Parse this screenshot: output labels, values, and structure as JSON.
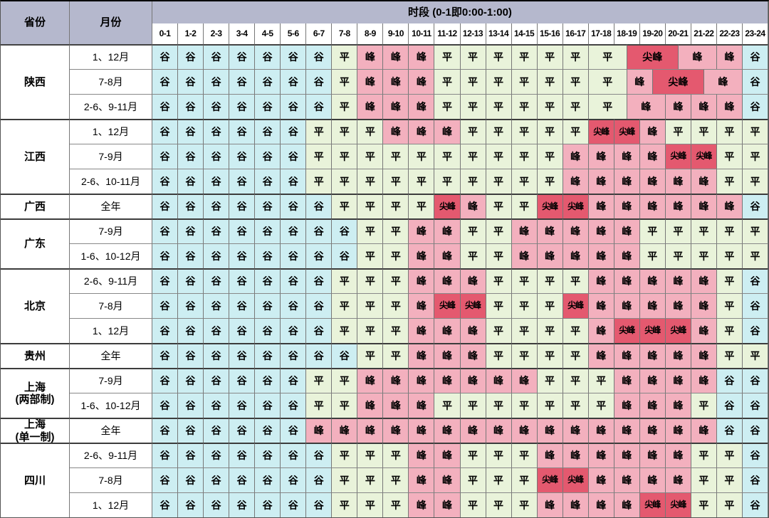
{
  "colors": {
    "valley": "#CDEEF2",
    "flat": "#E9F3DA",
    "peak": "#F3B0BE",
    "sharp": "#E4596F",
    "header_bg": "#B5B8CD",
    "hour_bg": "#FFFFFF",
    "grid_line": "#777777",
    "group_line": "#3C3C3C"
  },
  "header": {
    "province_label": "省份",
    "month_label": "月份",
    "period_title": "时段 (0-1即0:00-1:00)",
    "hours": [
      "0-1",
      "1-2",
      "2-3",
      "3-4",
      "4-5",
      "5-6",
      "6-7",
      "7-8",
      "8-9",
      "9-10",
      "10-11",
      "11-12",
      "12-13",
      "13-14",
      "14-15",
      "15-16",
      "16-17",
      "17-18",
      "18-19",
      "19-20",
      "20-21",
      "21-22",
      "22-23",
      "23-24"
    ]
  },
  "legend": {
    "valley": "谷",
    "flat": "平",
    "peak": "峰",
    "sharp": "尖峰"
  },
  "provinces": [
    {
      "name": "陕西",
      "rows": [
        {
          "months": "1、12月",
          "segments": [
            [
              "谷",
              0,
              7
            ],
            [
              "平",
              7,
              8
            ],
            [
              "峰",
              8,
              11
            ],
            [
              "平",
              11,
              17
            ],
            [
              "平",
              17,
              18.5,
              1
            ],
            [
              "尖峰",
              18.5,
              20.5,
              1
            ],
            [
              "峰",
              20.5,
              22,
              1
            ],
            [
              "峰",
              22,
              23
            ],
            [
              "谷",
              23,
              24
            ]
          ]
        },
        {
          "months": "7-8月",
          "segments": [
            [
              "谷",
              0,
              7
            ],
            [
              "平",
              7,
              8
            ],
            [
              "峰",
              8,
              11
            ],
            [
              "平",
              11,
              17
            ],
            [
              "平",
              17,
              18.5,
              1
            ],
            [
              "峰",
              18.5,
              19.5,
              1
            ],
            [
              "尖峰",
              19.5,
              21.5,
              1
            ],
            [
              "峰",
              21.5,
              23,
              1
            ],
            [
              "谷",
              23,
              24
            ]
          ]
        },
        {
          "months": "2-6、9-11月",
          "segments": [
            [
              "谷",
              0,
              7
            ],
            [
              "平",
              7,
              8
            ],
            [
              "峰",
              8,
              11
            ],
            [
              "平",
              11,
              17
            ],
            [
              "平",
              17,
              18.5,
              1
            ],
            [
              "峰",
              18.5,
              20,
              1
            ],
            [
              "峰",
              20,
              23
            ],
            [
              "谷",
              23,
              24
            ]
          ]
        }
      ]
    },
    {
      "name": "江西",
      "rows": [
        {
          "months": "1、12月",
          "segments": [
            [
              "谷",
              0,
              6
            ],
            [
              "平",
              6,
              9
            ],
            [
              "峰",
              9,
              12
            ],
            [
              "平",
              12,
              17
            ],
            [
              "尖峰",
              17,
              19
            ],
            [
              "峰",
              19,
              20
            ],
            [
              "平",
              20,
              24
            ]
          ]
        },
        {
          "months": "7-9月",
          "segments": [
            [
              "谷",
              0,
              6
            ],
            [
              "平",
              6,
              16
            ],
            [
              "峰",
              16,
              20
            ],
            [
              "尖峰",
              20,
              22
            ],
            [
              "平",
              22,
              24
            ]
          ]
        },
        {
          "months": "2-6、10-11月",
          "segments": [
            [
              "谷",
              0,
              6
            ],
            [
              "平",
              6,
              16
            ],
            [
              "峰",
              16,
              22
            ],
            [
              "平",
              22,
              24
            ]
          ]
        }
      ]
    },
    {
      "name": "广西",
      "rows": [
        {
          "months": "全年",
          "segments": [
            [
              "谷",
              0,
              7
            ],
            [
              "平",
              7,
              11
            ],
            [
              "尖峰",
              11,
              12
            ],
            [
              "峰",
              12,
              13
            ],
            [
              "平",
              13,
              15
            ],
            [
              "尖峰",
              15,
              17
            ],
            [
              "峰",
              17,
              23
            ],
            [
              "谷",
              23,
              24
            ]
          ]
        }
      ]
    },
    {
      "name": "广东",
      "rows": [
        {
          "months": "7-9月",
          "segments": [
            [
              "谷",
              0,
              8
            ],
            [
              "平",
              8,
              10
            ],
            [
              "峰",
              10,
              12
            ],
            [
              "平",
              12,
              14
            ],
            [
              "峰",
              14,
              19
            ],
            [
              "平",
              19,
              24
            ]
          ]
        },
        {
          "months": "1-6、10-12月",
          "segments": [
            [
              "谷",
              0,
              8
            ],
            [
              "平",
              8,
              10
            ],
            [
              "峰",
              10,
              12
            ],
            [
              "平",
              12,
              14
            ],
            [
              "峰",
              14,
              19
            ],
            [
              "平",
              19,
              24
            ]
          ]
        }
      ]
    },
    {
      "name": "北京",
      "rows": [
        {
          "months": "2-6、9-11月",
          "segments": [
            [
              "谷",
              0,
              7
            ],
            [
              "平",
              7,
              10
            ],
            [
              "峰",
              10,
              13
            ],
            [
              "平",
              13,
              17
            ],
            [
              "峰",
              17,
              22
            ],
            [
              "平",
              22,
              23
            ],
            [
              "谷",
              23,
              24
            ]
          ]
        },
        {
          "months": "7-8月",
          "segments": [
            [
              "谷",
              0,
              7
            ],
            [
              "平",
              7,
              10
            ],
            [
              "峰",
              10,
              11
            ],
            [
              "尖峰",
              11,
              13
            ],
            [
              "平",
              13,
              16
            ],
            [
              "尖峰",
              16,
              17
            ],
            [
              "峰",
              17,
              22
            ],
            [
              "平",
              22,
              23
            ],
            [
              "谷",
              23,
              24
            ]
          ]
        },
        {
          "months": "1、12月",
          "segments": [
            [
              "谷",
              0,
              7
            ],
            [
              "平",
              7,
              10
            ],
            [
              "峰",
              10,
              13
            ],
            [
              "平",
              13,
              17
            ],
            [
              "峰",
              17,
              18
            ],
            [
              "尖峰",
              18,
              21
            ],
            [
              "峰",
              21,
              22
            ],
            [
              "平",
              22,
              23
            ],
            [
              "谷",
              23,
              24
            ]
          ]
        }
      ]
    },
    {
      "name": "贵州",
      "rows": [
        {
          "months": "全年",
          "segments": [
            [
              "谷",
              0,
              8
            ],
            [
              "平",
              8,
              10
            ],
            [
              "峰",
              10,
              13
            ],
            [
              "平",
              13,
              17
            ],
            [
              "峰",
              17,
              22
            ],
            [
              "平",
              22,
              24
            ]
          ]
        }
      ]
    },
    {
      "name": "上海\n(两部制)",
      "rows": [
        {
          "months": "7-9月",
          "segments": [
            [
              "谷",
              0,
              6
            ],
            [
              "平",
              6,
              8
            ],
            [
              "峰",
              8,
              15
            ],
            [
              "平",
              15,
              18
            ],
            [
              "峰",
              18,
              22
            ],
            [
              "谷",
              22,
              24
            ]
          ]
        },
        {
          "months": "1-6、10-12月",
          "segments": [
            [
              "谷",
              0,
              6
            ],
            [
              "平",
              6,
              8
            ],
            [
              "峰",
              8,
              11
            ],
            [
              "平",
              11,
              18
            ],
            [
              "峰",
              18,
              21
            ],
            [
              "平",
              21,
              22
            ],
            [
              "谷",
              22,
              24
            ]
          ]
        }
      ]
    },
    {
      "name": "上海\n(单一制)",
      "rows": [
        {
          "months": "全年",
          "segments": [
            [
              "谷",
              0,
              6
            ],
            [
              "峰",
              6,
              22
            ],
            [
              "谷",
              22,
              24
            ]
          ]
        }
      ]
    },
    {
      "name": "四川",
      "rows": [
        {
          "months": "2-6、9-11月",
          "segments": [
            [
              "谷",
              0,
              7
            ],
            [
              "平",
              7,
              10
            ],
            [
              "峰",
              10,
              12
            ],
            [
              "平",
              12,
              15
            ],
            [
              "峰",
              15,
              21
            ],
            [
              "平",
              21,
              23
            ],
            [
              "谷",
              23,
              24
            ]
          ]
        },
        {
          "months": "7-8月",
          "segments": [
            [
              "谷",
              0,
              7
            ],
            [
              "平",
              7,
              10
            ],
            [
              "峰",
              10,
              12
            ],
            [
              "平",
              12,
              15
            ],
            [
              "尖峰",
              15,
              17
            ],
            [
              "峰",
              17,
              21
            ],
            [
              "平",
              21,
              23
            ],
            [
              "谷",
              23,
              24
            ]
          ]
        },
        {
          "months": "1、12月",
          "segments": [
            [
              "谷",
              0,
              7
            ],
            [
              "平",
              7,
              10
            ],
            [
              "峰",
              10,
              12
            ],
            [
              "平",
              12,
              15
            ],
            [
              "峰",
              15,
              19
            ],
            [
              "尖峰",
              19,
              21
            ],
            [
              "平",
              21,
              23
            ],
            [
              "谷",
              23,
              24
            ]
          ]
        }
      ]
    }
  ]
}
